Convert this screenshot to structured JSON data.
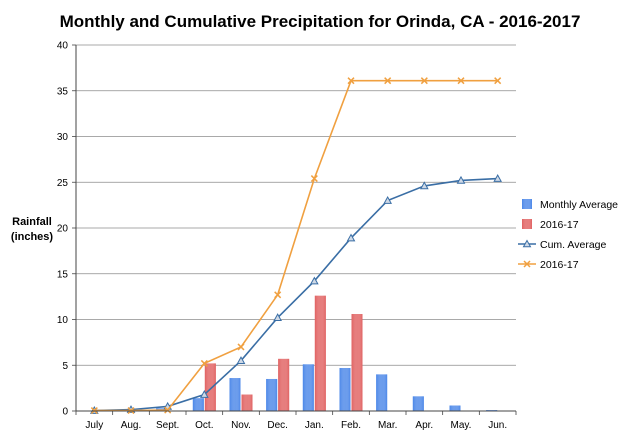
{
  "chart_data": {
    "type": "bar",
    "title": "Monthly and Cumulative Precipitation for Orinda, CA - 2016-2017",
    "ylabel_lines": [
      "Rainfall",
      "(inches)"
    ],
    "xlabel": "",
    "categories": [
      "July",
      "Aug.",
      "Sept.",
      "Oct.",
      "Nov.",
      "Dec.",
      "Jan.",
      "Feb.",
      "Mar.",
      "Apr.",
      "May.",
      "Jun."
    ],
    "ylim": [
      0,
      40
    ],
    "yticks": [
      0,
      5,
      10,
      15,
      20,
      25,
      30,
      35,
      40
    ],
    "grid": true,
    "legend_position": "right",
    "series": [
      {
        "name": "Monthly Average",
        "kind": "bar",
        "color": "#4a86e8",
        "values": [
          0.05,
          0.1,
          0.3,
          1.4,
          3.6,
          3.5,
          5.1,
          4.7,
          4.0,
          1.6,
          0.6,
          0.1
        ]
      },
      {
        "name": "2016-17",
        "kind": "bar",
        "color": "#e06060",
        "values": [
          0,
          0,
          0,
          5.2,
          1.8,
          5.7,
          12.6,
          10.6,
          0,
          0,
          0,
          0
        ]
      },
      {
        "name": "Cum. Average",
        "kind": "line",
        "marker": "triangle",
        "color": "#3a6ea5",
        "values": [
          0.05,
          0.15,
          0.5,
          1.8,
          5.5,
          10.2,
          14.2,
          18.9,
          23.0,
          24.6,
          25.2,
          25.4
        ]
      },
      {
        "name": "2016-17",
        "kind": "line",
        "marker": "x",
        "color": "#f0a040",
        "values": [
          0.05,
          0.05,
          0.1,
          5.2,
          7.0,
          12.7,
          25.4,
          36.1,
          36.1,
          36.1,
          36.1,
          36.1
        ]
      }
    ]
  }
}
